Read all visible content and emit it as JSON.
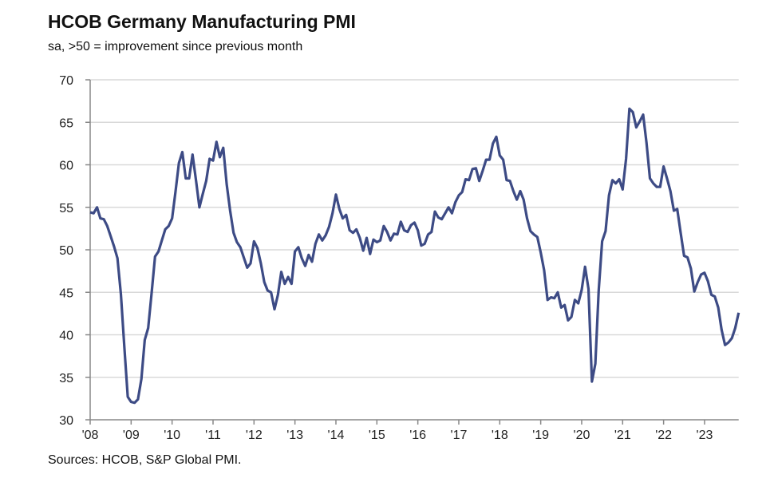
{
  "chart_data": {
    "type": "line",
    "title": "HCOB Germany Manufacturing PMI",
    "subtitle": "sa, >50 = improvement since previous month",
    "source": "Sources: HCOB, S&P Global PMI.",
    "xlabel": "",
    "ylabel": "",
    "ylim": [
      30,
      70
    ],
    "yticks": [
      30,
      35,
      40,
      45,
      50,
      55,
      60,
      65,
      70
    ],
    "xtick_labels": [
      "'08",
      "'09",
      "'10",
      "'11",
      "'12",
      "'13",
      "'14",
      "'15",
      "'16",
      "'17",
      "'18",
      "'19",
      "'20",
      "'21",
      "'22",
      "'23"
    ],
    "x_start": "2008-01",
    "x_end": "2023-11",
    "frequency": "monthly",
    "grid": "horizontal",
    "line_color": "#3d4b85",
    "series": [
      {
        "values": [
          54.4,
          54.3,
          55.0,
          53.7,
          53.6,
          52.8,
          51.6,
          50.4,
          49.0,
          44.8,
          38.6,
          32.7,
          32.1,
          32.0,
          32.4,
          34.8,
          39.4,
          40.8,
          44.9,
          49.2,
          49.8,
          51.1,
          52.4,
          52.8,
          53.7,
          56.8,
          60.2,
          61.5,
          58.4,
          58.4,
          61.2,
          58.2,
          55.0,
          56.6,
          58.1,
          60.7,
          60.5,
          62.7,
          60.9,
          62.0,
          57.7,
          54.6,
          52.0,
          50.9,
          50.3,
          49.1,
          47.9,
          48.4,
          51.0,
          50.2,
          48.4,
          46.2,
          45.2,
          45.0,
          43.0,
          44.7,
          47.4,
          46.0,
          46.8,
          46.0,
          49.8,
          50.3,
          49.0,
          48.1,
          49.4,
          48.6,
          50.7,
          51.8,
          51.1,
          51.7,
          52.7,
          54.3,
          56.5,
          54.8,
          53.7,
          54.1,
          52.3,
          52.0,
          52.4,
          51.4,
          49.9,
          51.4,
          49.5,
          51.2,
          50.9,
          51.1,
          52.8,
          52.1,
          51.1,
          51.9,
          51.8,
          53.3,
          52.3,
          52.1,
          52.9,
          53.2,
          52.3,
          50.5,
          50.7,
          51.8,
          52.1,
          54.5,
          53.8,
          53.6,
          54.3,
          55.0,
          54.3,
          55.6,
          56.4,
          56.8,
          58.3,
          58.2,
          59.5,
          59.6,
          58.1,
          59.3,
          60.6,
          60.6,
          62.5,
          63.3,
          61.1,
          60.6,
          58.2,
          58.1,
          56.9,
          55.9,
          56.9,
          55.9,
          53.7,
          52.2,
          51.8,
          51.5,
          49.7,
          47.6,
          44.1,
          44.4,
          44.3,
          45.0,
          43.2,
          43.5,
          41.7,
          42.1,
          44.1,
          43.7,
          45.3,
          48.0,
          45.4,
          34.5,
          36.6,
          45.2,
          51.0,
          52.2,
          56.4,
          58.2,
          57.8,
          58.3,
          57.1,
          60.7,
          66.6,
          66.2,
          64.4,
          65.1,
          65.9,
          62.6,
          58.4,
          57.8,
          57.4,
          57.4,
          59.8,
          58.4,
          56.9,
          54.6,
          54.8,
          52.0,
          49.3,
          49.1,
          47.8,
          45.1,
          46.2,
          47.1,
          47.3,
          46.3,
          44.7,
          44.5,
          43.2,
          40.6,
          38.8,
          39.1,
          39.6,
          40.8,
          42.6
        ]
      }
    ]
  }
}
